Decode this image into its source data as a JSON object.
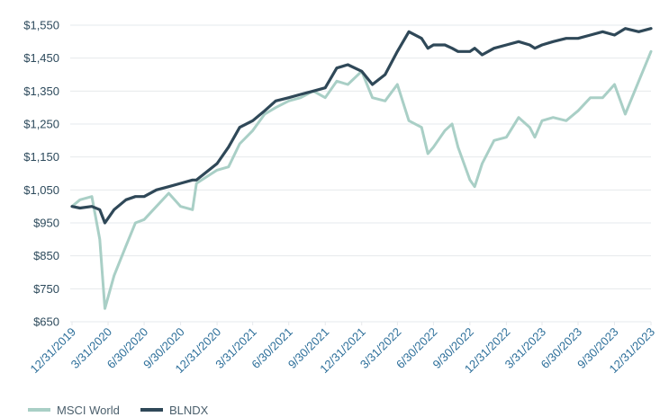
{
  "colors": {
    "msci": "#a9cfc6",
    "blndx": "#2f4858",
    "grid": "#e6e9ec",
    "ytick_text": "#2d4a5c",
    "xtick_text": "#2d6f9a"
  },
  "chart_data": {
    "type": "line",
    "title": "",
    "xlabel": "",
    "ylabel": "",
    "ylim": [
      650,
      1550
    ],
    "y_ticks": [
      "$650",
      "$750",
      "$850",
      "$950",
      "$1,050",
      "$1,150",
      "$1,250",
      "$1,350",
      "$1,450",
      "$1,550"
    ],
    "y_tick_values": [
      650,
      750,
      850,
      950,
      1050,
      1150,
      1250,
      1350,
      1450,
      1550
    ],
    "x_ticks": [
      "12/31/2019",
      "3/31/2020",
      "6/30/2020",
      "9/30/2020",
      "12/31/2020",
      "3/31/2021",
      "6/30/2021",
      "9/30/2021",
      "12/31/2021",
      "3/31/2022",
      "6/30/2022",
      "9/30/2022",
      "12/31/2022",
      "3/31/2023",
      "6/30/2023",
      "9/30/2023",
      "12/31/2023"
    ],
    "grid": "horizontal",
    "legend_position": "bottom-left",
    "series": [
      {
        "name": "MSCI World",
        "x": [
          "12/31/2019",
          "1/20/2020",
          "2/19/2020",
          "3/10/2020",
          "3/23/2020",
          "4/15/2020",
          "5/15/2020",
          "6/8/2020",
          "6/30/2020",
          "7/31/2020",
          "8/31/2020",
          "9/30/2020",
          "10/30/2020",
          "11/9/2020",
          "12/31/2020",
          "1/29/2021",
          "2/26/2021",
          "3/31/2021",
          "4/30/2021",
          "5/28/2021",
          "6/30/2021",
          "7/30/2021",
          "8/31/2021",
          "9/30/2021",
          "10/29/2021",
          "11/26/2021",
          "12/31/2021",
          "1/27/2022",
          "2/28/2022",
          "3/31/2022",
          "4/29/2022",
          "5/31/2022",
          "6/16/2022",
          "6/30/2022",
          "7/29/2022",
          "8/16/2022",
          "8/31/2022",
          "9/30/2022",
          "10/12/2022",
          "10/31/2022",
          "11/30/2022",
          "12/31/2022",
          "1/31/2023",
          "2/28/2023",
          "3/13/2023",
          "3/31/2023",
          "4/28/2023",
          "5/31/2023",
          "6/30/2023",
          "7/31/2023",
          "8/31/2023",
          "9/30/2023",
          "10/27/2023",
          "11/30/2023",
          "12/31/2023"
        ],
        "values": [
          1000,
          1020,
          1030,
          900,
          690,
          790,
          880,
          950,
          960,
          1000,
          1040,
          1000,
          990,
          1070,
          1110,
          1120,
          1190,
          1230,
          1280,
          1300,
          1320,
          1330,
          1350,
          1330,
          1380,
          1370,
          1410,
          1330,
          1320,
          1370,
          1260,
          1240,
          1160,
          1180,
          1230,
          1250,
          1180,
          1080,
          1060,
          1130,
          1200,
          1210,
          1270,
          1240,
          1210,
          1260,
          1270,
          1260,
          1290,
          1330,
          1330,
          1370,
          1280,
          1380,
          1470
        ]
      },
      {
        "name": "BLNDX",
        "x": [
          "12/31/2019",
          "1/20/2020",
          "2/19/2020",
          "3/10/2020",
          "3/23/2020",
          "4/15/2020",
          "5/15/2020",
          "6/8/2020",
          "6/30/2020",
          "7/31/2020",
          "8/31/2020",
          "9/30/2020",
          "10/30/2020",
          "11/9/2020",
          "12/31/2020",
          "1/29/2021",
          "2/26/2021",
          "3/31/2021",
          "4/30/2021",
          "5/28/2021",
          "6/30/2021",
          "7/30/2021",
          "8/31/2021",
          "9/30/2021",
          "10/29/2021",
          "11/26/2021",
          "12/31/2021",
          "1/27/2022",
          "2/28/2022",
          "3/31/2022",
          "4/29/2022",
          "5/31/2022",
          "6/16/2022",
          "6/30/2022",
          "7/29/2022",
          "8/16/2022",
          "8/31/2022",
          "9/30/2022",
          "10/12/2022",
          "10/31/2022",
          "11/30/2022",
          "12/31/2022",
          "1/31/2023",
          "2/28/2023",
          "3/13/2023",
          "3/31/2023",
          "4/28/2023",
          "5/31/2023",
          "6/30/2023",
          "7/31/2023",
          "8/31/2023",
          "9/30/2023",
          "10/27/2023",
          "11/30/2023",
          "12/31/2023"
        ],
        "values": [
          1000,
          995,
          1000,
          990,
          950,
          990,
          1020,
          1030,
          1030,
          1050,
          1060,
          1070,
          1080,
          1080,
          1130,
          1180,
          1240,
          1260,
          1290,
          1320,
          1330,
          1340,
          1350,
          1360,
          1420,
          1430,
          1410,
          1370,
          1400,
          1470,
          1530,
          1510,
          1480,
          1490,
          1490,
          1480,
          1470,
          1470,
          1480,
          1460,
          1480,
          1490,
          1500,
          1490,
          1480,
          1490,
          1500,
          1510,
          1510,
          1520,
          1530,
          1520,
          1540,
          1530,
          1540
        ]
      }
    ]
  }
}
